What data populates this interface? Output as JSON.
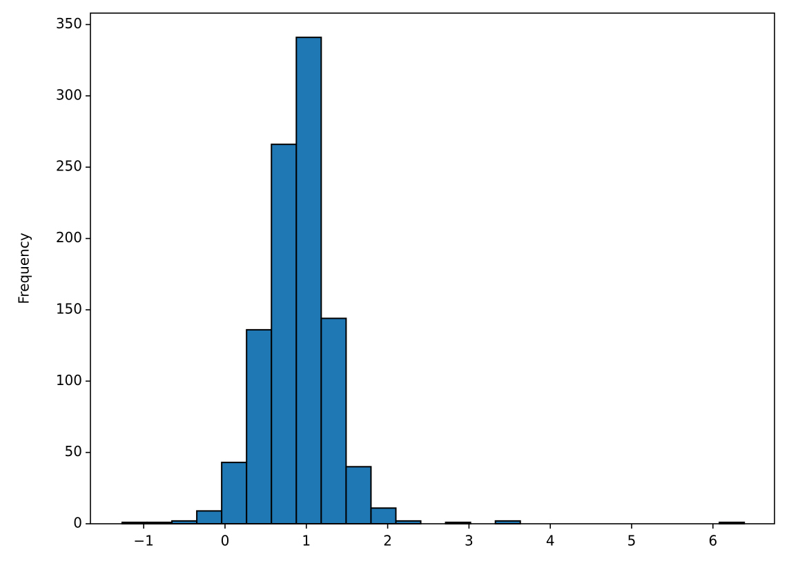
{
  "chart_data": {
    "type": "histogram",
    "y_label": "Frequency",
    "bins": [
      -1.265,
      -0.959,
      -0.653,
      -0.347,
      -0.041,
      0.265,
      0.571,
      0.877,
      1.183,
      1.489,
      1.795,
      2.101,
      2.407,
      2.713,
      3.019,
      3.325,
      3.631,
      3.937,
      4.243,
      4.549,
      4.855,
      5.161,
      5.467,
      5.773,
      6.079,
      6.385
    ],
    "values": [
      1,
      1,
      2,
      9,
      43,
      136,
      266,
      341,
      144,
      40,
      11,
      2,
      0,
      1,
      0,
      2,
      0,
      0,
      0,
      0,
      0,
      0,
      0,
      0,
      1
    ],
    "color": "#1f77b4",
    "edgecolor": "#000000",
    "xlim": [
      -1.655,
      6.757
    ],
    "ylim": [
      0,
      358
    ],
    "xticks": [
      {
        "value": -1,
        "label": "−1"
      },
      0,
      1,
      2,
      3,
      4,
      5,
      6
    ],
    "yticks": [
      0,
      50,
      100,
      150,
      200,
      250,
      300,
      350
    ],
    "grid": false
  }
}
